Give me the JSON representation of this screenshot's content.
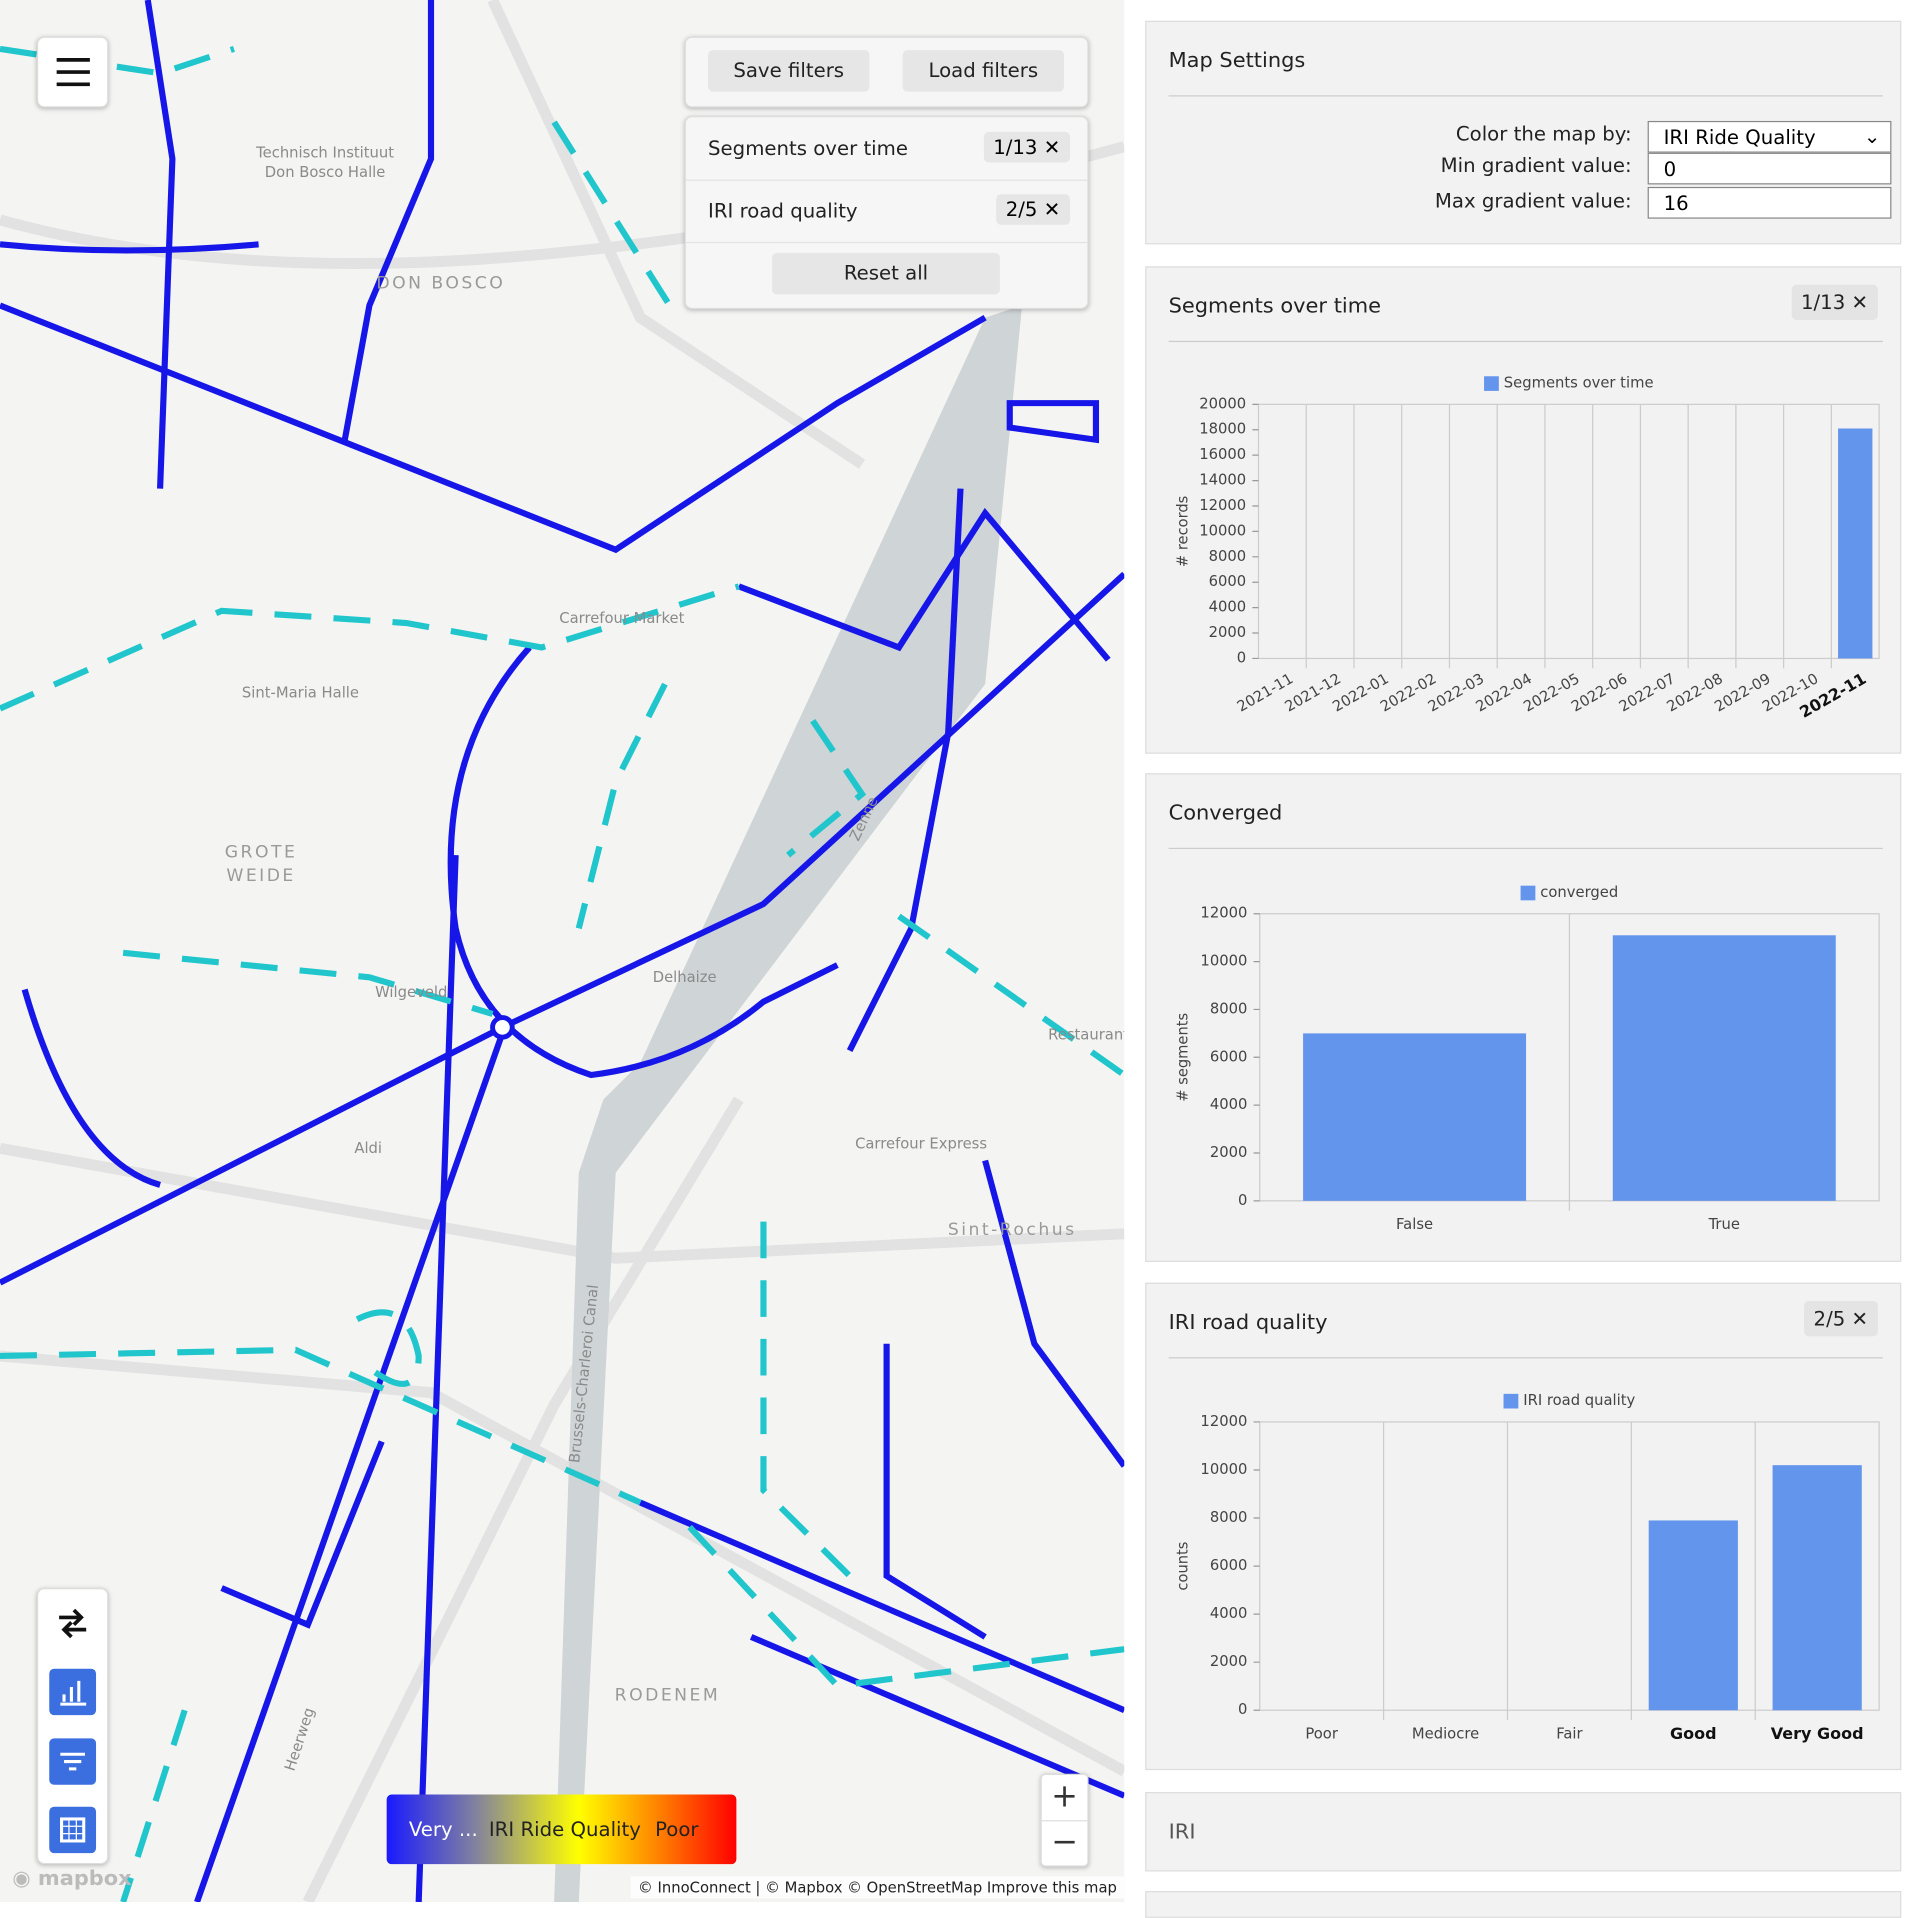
{
  "map": {
    "buttons": {
      "save": "Save filters",
      "load": "Load filters",
      "reset": "Reset all"
    },
    "filters": [
      {
        "name": "Segments over time",
        "badge": "1/13"
      },
      {
        "name": "IRI road quality",
        "badge": "2/5"
      }
    ],
    "legend": {
      "low": "Very ...",
      "title": "IRI Ride Quality",
      "high": "Poor"
    },
    "places": [
      "Technisch Instituut",
      "Don Bosco Halle",
      "DON BOSCO",
      "Carrefour Market",
      "Sint-Maria Halle",
      "GROTE",
      "WEIDE",
      "Wilgeveld",
      "Delhaize",
      "Aldi",
      "Carrefour Express",
      "Sint-Rochus",
      "Restaurant",
      "RODENEM",
      "Brussels-Charleroi Canal",
      "Zenne",
      "Heerweg"
    ],
    "attribution": "© InnoConnect | © Mapbox © OpenStreetMap",
    "improve": "Improve this map",
    "logo": "mapbox"
  },
  "settings": {
    "title": "Map Settings",
    "fields": [
      {
        "label": "Color the map by:",
        "value": "IRI Ride Quality"
      },
      {
        "label": "Min gradient value:",
        "value": "0"
      },
      {
        "label": "Max gradient value:",
        "value": "16"
      }
    ]
  },
  "charts": [
    {
      "type": "bar",
      "title": "Segments over time",
      "badge": "1/13",
      "series_name": "Segments over time",
      "y_label": "# records",
      "color": "#6495ed",
      "categories": [
        "2021-11",
        "2021-12",
        "2022-01",
        "2022-02",
        "2022-03",
        "2022-04",
        "2022-05",
        "2022-06",
        "2022-07",
        "2022-08",
        "2022-09",
        "2022-10",
        "2022-11"
      ],
      "values": [
        0,
        0,
        0,
        0,
        0,
        0,
        0,
        0,
        0,
        0,
        0,
        0,
        18100
      ],
      "highlight": [
        12
      ],
      "rotate_labels": true,
      "ylim": [
        0,
        20000
      ],
      "yticks": [
        0,
        2000,
        4000,
        6000,
        8000,
        10000,
        12000,
        14000,
        16000,
        18000,
        20000
      ]
    },
    {
      "type": "bar",
      "title": "Converged",
      "series_name": "converged",
      "y_label": "# segments",
      "color": "#6495ed",
      "categories": [
        "False",
        "True"
      ],
      "values": [
        7000,
        11100
      ],
      "highlight": [],
      "rotate_labels": false,
      "ylim": [
        0,
        12000
      ],
      "yticks": [
        0,
        2000,
        4000,
        6000,
        8000,
        10000,
        12000
      ]
    },
    {
      "type": "bar",
      "title": "IRI road quality",
      "badge": "2/5",
      "series_name": "IRI road quality",
      "y_label": "counts",
      "color": "#6495ed",
      "categories": [
        "Poor",
        "Mediocre",
        "Fair",
        "Good",
        "Very Good"
      ],
      "values": [
        0,
        0,
        0,
        7900,
        10200
      ],
      "highlight": [
        3,
        4
      ],
      "rotate_labels": false,
      "ylim": [
        0,
        12000
      ],
      "yticks": [
        0,
        2000,
        4000,
        6000,
        8000,
        10000,
        12000
      ]
    }
  ],
  "iri_panel": {
    "title": "IRI"
  }
}
